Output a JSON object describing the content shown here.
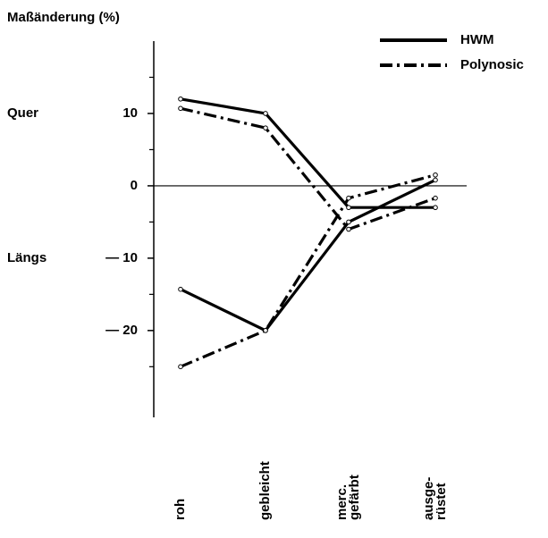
{
  "chart_data": {
    "type": "line",
    "title": "Maßänderung (%)",
    "side_labels": [
      "Quer",
      "Längs"
    ],
    "categories": [
      "roh",
      "gebleicht",
      "merc. gefärbt",
      "ausge- rüstet"
    ],
    "series": [
      {
        "name": "HWM",
        "color": "#000000",
        "dash": "solid",
        "quer": [
          12,
          10,
          -3,
          -3
        ],
        "laengs": [
          -14.3,
          -20,
          -5,
          0.8
        ]
      },
      {
        "name": "Polynosic",
        "color": "#000000",
        "dash": "dashdot",
        "quer": [
          10.7,
          8,
          -6,
          -1.7
        ],
        "laengs": [
          -25,
          -20,
          -1.7,
          1.5
        ]
      }
    ],
    "ylim": [
      -32,
      20
    ],
    "yticks": [
      10,
      0,
      {
        "value": -10,
        "label": "— 10"
      },
      {
        "value": -20,
        "label": "— 20"
      }
    ],
    "yminor_ticks": [
      15,
      5,
      -5,
      -15,
      -25
    ],
    "zero_line": true,
    "legend": "upper right"
  }
}
